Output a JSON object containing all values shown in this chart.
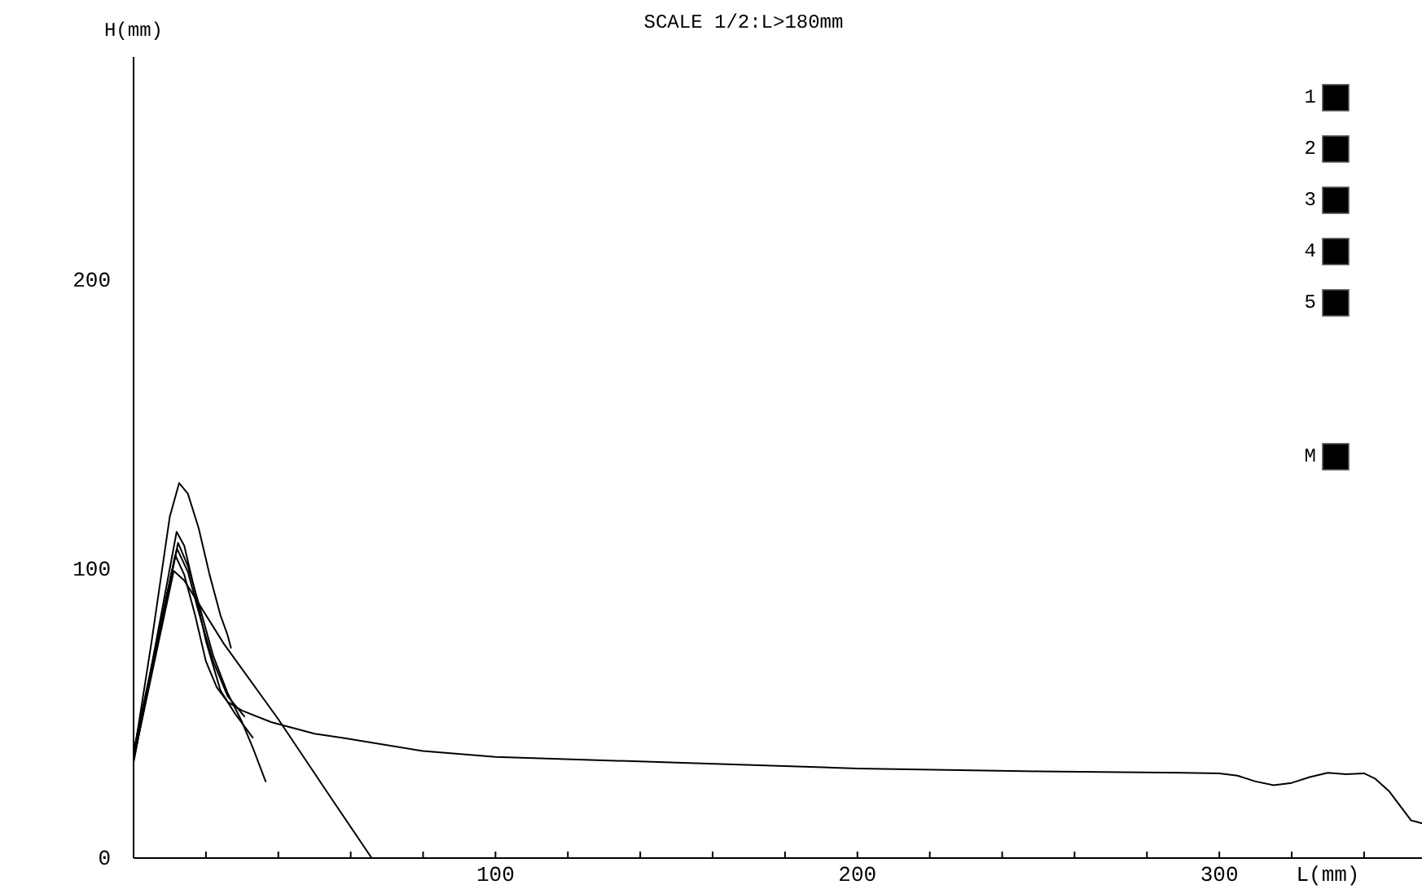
{
  "chart_data": {
    "type": "line",
    "title": "SCALE 1/2:L>180mm",
    "xlabel": "L(mm)",
    "ylabel": "H(mm)",
    "xlim": [
      0,
      356
    ],
    "ylim": [
      0,
      277
    ],
    "xticks": [
      {
        "value": 20,
        "label": null
      },
      {
        "value": 40,
        "label": null
      },
      {
        "value": 60,
        "label": null
      },
      {
        "value": 80,
        "label": null
      },
      100,
      {
        "value": 120,
        "label": null
      },
      {
        "value": 140,
        "label": null
      },
      {
        "value": 160,
        "label": null
      },
      {
        "value": 180,
        "label": null
      },
      200,
      {
        "value": 220,
        "label": null
      },
      {
        "value": 240,
        "label": null
      },
      {
        "value": 260,
        "label": null
      },
      {
        "value": 280,
        "label": null
      },
      300,
      {
        "value": 320,
        "label": null
      },
      {
        "value": 340,
        "label": null
      }
    ],
    "yticks": [
      0,
      100,
      200
    ],
    "legend": "top right",
    "grid": false,
    "marker": "none",
    "line_style": "solid",
    "series": [
      {
        "name": "1",
        "color": "#000000",
        "x": [
          0,
          5,
          10,
          12.6,
          15,
          18,
          21,
          24,
          26,
          26.9
        ],
        "values": [
          35,
          75,
          118,
          129.7,
          126,
          114,
          98,
          84,
          77,
          72.7
        ]
      },
      {
        "name": "2",
        "color": "#000000",
        "x": [
          0,
          11.9,
          14,
          17,
          20,
          24,
          28,
          32.9
        ],
        "values": [
          33,
          112.8,
          108,
          92,
          75,
          58,
          50,
          41.7
        ]
      },
      {
        "name": "3",
        "color": "#000000",
        "x": [
          0,
          12.3,
          15,
          18,
          22,
          26,
          30,
          33,
          36.5
        ],
        "values": [
          36,
          109,
          101,
          88,
          70,
          57,
          47,
          38,
          26.5
        ]
      },
      {
        "name": "4",
        "color": "#000000",
        "x": [
          0,
          12,
          15,
          18,
          22,
          26,
          30.6
        ],
        "values": [
          34,
          107,
          99,
          85,
          68,
          56,
          49
        ]
      },
      {
        "name": "5",
        "color": "#000000",
        "x": [
          0,
          11.1,
          14,
          18,
          25,
          40,
          55,
          65.8
        ],
        "values": [
          34,
          99.3,
          96,
          88,
          74,
          48,
          20,
          0
        ]
      },
      {
        "name": "M",
        "color": "#000000",
        "x": [
          0,
          11.5,
          14,
          17,
          20,
          23,
          26,
          30,
          38,
          50,
          58,
          80,
          100,
          150,
          200,
          250,
          290,
          300,
          305,
          310,
          315,
          320,
          325,
          330,
          335,
          340,
          343,
          347,
          350,
          353,
          356
        ],
        "values": [
          37,
          104.8,
          98,
          84,
          68,
          59,
          54,
          51,
          47,
          43,
          41.5,
          37,
          35,
          33,
          31,
          30,
          29.5,
          29.3,
          28.5,
          26.5,
          25.2,
          26,
          28,
          29.5,
          29,
          29.3,
          27.5,
          23,
          18,
          13,
          12
        ]
      }
    ]
  }
}
